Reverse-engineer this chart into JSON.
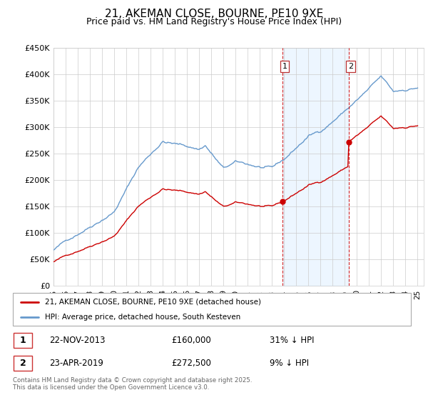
{
  "title": "21, AKEMAN CLOSE, BOURNE, PE10 9XE",
  "subtitle": "Price paid vs. HM Land Registry's House Price Index (HPI)",
  "ylabel_ticks": [
    "£0",
    "£50K",
    "£100K",
    "£150K",
    "£200K",
    "£250K",
    "£300K",
    "£350K",
    "£400K",
    "£450K"
  ],
  "ylim": [
    0,
    450000
  ],
  "yticks": [
    0,
    50000,
    100000,
    150000,
    200000,
    250000,
    300000,
    350000,
    400000,
    450000
  ],
  "legend_line1": "21, AKEMAN CLOSE, BOURNE, PE10 9XE (detached house)",
  "legend_line2": "HPI: Average price, detached house, South Kesteven",
  "sale1_date": "22-NOV-2013",
  "sale1_price": 160000,
  "sale1_label": "£160,000",
  "sale1_pct": "31% ↓ HPI",
  "sale1_x": 2013.89,
  "sale2_date": "23-APR-2019",
  "sale2_price": 272500,
  "sale2_label": "£272,500",
  "sale2_pct": "9% ↓ HPI",
  "sale2_x": 2019.31,
  "footnote": "Contains HM Land Registry data © Crown copyright and database right 2025.\nThis data is licensed under the Open Government Licence v3.0.",
  "red_color": "#cc0000",
  "blue_color": "#6699cc",
  "blue_fill": "#ddeeff",
  "grid_color": "#cccccc",
  "label_color1": "1",
  "label_color2": "2",
  "xtick_start": 1995,
  "xtick_end": 2025,
  "note_color": "#666666"
}
